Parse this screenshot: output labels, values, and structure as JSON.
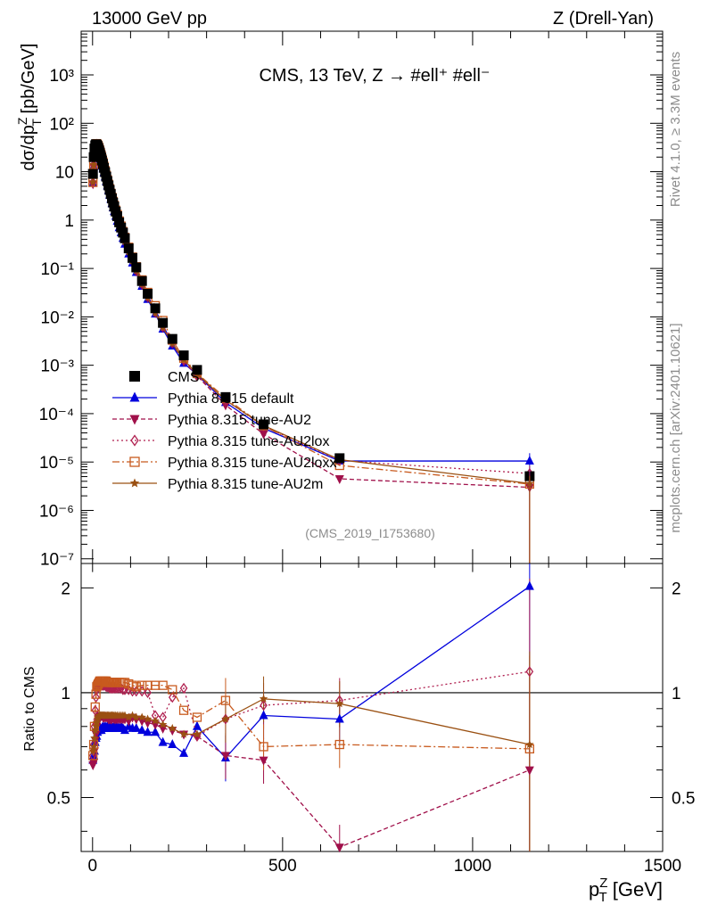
{
  "header": {
    "left": "13000 GeV pp",
    "right": "Z (Drell-Yan)"
  },
  "side_labels": {
    "rivet": "Rivet 4.1.0, ≥ 3.3M events",
    "mcplots": "mcplots.cern.ch [arXiv:2401.10621]"
  },
  "chart_data": [
    {
      "type": "scatter",
      "title": "CMS, 13 TeV, Z →  #ell⁺ #ell⁻",
      "analysis_label": "(CMS_2019_I1753680)",
      "xlabel": "p_T^Z [GeV]",
      "ylabel": "dσ/dp_T^Z [pb/GeV]",
      "ylabel_text": {
        "main": "dσ/dp",
        "sup": "Z",
        "sub": "T",
        "unit": " [pb/GeV]"
      },
      "yscale": "log",
      "xlim": [
        -30,
        1500
      ],
      "ylim": [
        8e-08,
        8000
      ],
      "y_ticks": [
        {
          "v": 1000,
          "label": "10³"
        },
        {
          "v": 100,
          "label": "10²"
        },
        {
          "v": 10,
          "label": "10"
        },
        {
          "v": 1,
          "label": "1"
        },
        {
          "v": 0.1,
          "label": "10⁻¹"
        },
        {
          "v": 0.01,
          "label": "10⁻²"
        },
        {
          "v": 0.001,
          "label": "10⁻³"
        },
        {
          "v": 0.0001,
          "label": "10⁻⁴"
        },
        {
          "v": 1e-05,
          "label": "10⁻⁵"
        },
        {
          "v": 1e-06,
          "label": "10⁻⁶"
        },
        {
          "v": 1e-07,
          "label": "10⁻⁷"
        }
      ],
      "x": [
        1,
        3,
        5,
        7,
        9,
        11,
        13,
        15,
        17,
        19,
        21,
        23,
        25,
        27.5,
        30,
        33,
        36,
        39,
        42,
        45,
        48,
        51,
        54,
        57,
        61,
        65,
        70,
        75,
        80,
        85,
        95,
        105,
        115,
        130,
        145,
        165,
        185,
        210,
        240,
        275,
        350,
        450,
        650,
        1150
      ],
      "series": [
        {
          "name": "CMS",
          "color": "#000000",
          "marker": "square",
          "line": "none",
          "values": [
            9,
            20,
            30,
            35,
            37,
            36,
            34,
            31,
            28,
            25,
            22,
            19.5,
            17,
            14.5,
            12,
            9.8,
            7.9,
            6.4,
            5.2,
            4.2,
            3.45,
            2.8,
            2.3,
            1.9,
            1.5,
            1.2,
            0.9,
            0.7,
            0.55,
            0.42,
            0.26,
            0.165,
            0.105,
            0.055,
            0.03,
            0.015,
            0.0075,
            0.0035,
            0.0016,
            0.0008,
            0.00022,
            6e-05,
            1.2e-05,
            5.1e-06
          ]
        },
        {
          "name": "Pythia 8.315 default",
          "color": "#0000dd",
          "marker": "triangle-up",
          "line": "solid",
          "values": [
            5.8,
            13,
            20,
            25,
            26,
            26,
            25,
            23,
            21,
            19,
            17,
            15,
            13,
            11.5,
            9.5,
            7.8,
            6.3,
            5.1,
            4.1,
            3.3,
            2.7,
            2.2,
            1.8,
            1.5,
            1.2,
            0.95,
            0.7,
            0.55,
            0.42,
            0.32,
            0.2,
            0.13,
            0.083,
            0.043,
            0.023,
            0.0115,
            0.0056,
            0.0025,
            0.0011,
            0.00064,
            0.00017,
            5e-05,
            1.05e-05,
            1.05e-05
          ]
        },
        {
          "name": "Pythia 8.315 tune-AU2",
          "color": "#a0104a",
          "marker": "triangle-down",
          "line": "dashed",
          "values": [
            5.6,
            12.5,
            20,
            25,
            27,
            28,
            27,
            26,
            24,
            21.5,
            19,
            16.8,
            14.5,
            12.3,
            10.2,
            8.3,
            6.7,
            5.4,
            4.4,
            3.55,
            2.9,
            2.35,
            1.95,
            1.6,
            1.27,
            1.01,
            0.76,
            0.59,
            0.46,
            0.35,
            0.215,
            0.14,
            0.088,
            0.046,
            0.025,
            0.0121,
            0.006,
            0.0028,
            0.0012,
            0.0006,
            0.00015,
            3.8e-05,
            4.5e-06,
            3e-06
          ]
        },
        {
          "name": "Pythia 8.315 tune-AU2lox",
          "color": "#b02050",
          "marker": "diamond-open",
          "line": "dotted",
          "values": [
            6,
            14,
            24,
            31,
            36,
            37,
            35,
            33,
            30,
            27,
            24,
            21,
            18,
            15.5,
            12.8,
            10.3,
            8.2,
            6.6,
            5.3,
            4.3,
            3.5,
            2.85,
            2.35,
            1.95,
            1.55,
            1.25,
            0.93,
            0.72,
            0.56,
            0.43,
            0.265,
            0.167,
            0.106,
            0.056,
            0.03,
            0.0128,
            0.0063,
            0.0034,
            0.0013,
            0.0006,
            0.00019,
            5.5e-05,
            1.08e-05,
            5.8e-06
          ]
        },
        {
          "name": "Pythia 8.315 tune-AU2loxx",
          "color": "#c85a1e",
          "marker": "square-open",
          "line": "dashdot",
          "values": [
            6,
            14,
            24,
            32,
            37,
            38,
            36,
            34,
            31,
            27.5,
            24.3,
            21.3,
            18.4,
            15.8,
            13,
            10.5,
            8.4,
            6.8,
            5.5,
            4.45,
            3.6,
            2.95,
            2.43,
            2.02,
            1.6,
            1.3,
            0.96,
            0.75,
            0.58,
            0.44,
            0.275,
            0.172,
            0.109,
            0.058,
            0.032,
            0.017,
            0.0084,
            0.0033,
            0.0014,
            0.00068,
            0.00021,
            5.6e-05,
            8.5e-06,
            3.5e-06
          ]
        },
        {
          "name": "Pythia 8.315 tune-AU2m",
          "color": "#9a5012",
          "marker": "star",
          "line": "solid",
          "values": [
            6.1,
            14,
            22,
            27,
            29,
            29.5,
            28.5,
            26.5,
            24,
            21.5,
            19,
            16.8,
            14.6,
            12.4,
            10.3,
            8.4,
            6.8,
            5.5,
            4.5,
            3.6,
            2.95,
            2.4,
            2,
            1.65,
            1.3,
            1.04,
            0.78,
            0.6,
            0.47,
            0.36,
            0.22,
            0.142,
            0.09,
            0.047,
            0.025,
            0.012,
            0.006,
            0.0028,
            0.0013,
            0.00066,
            0.00019,
            5.7e-05,
            1.12e-05,
            3.6e-06
          ]
        }
      ]
    },
    {
      "type": "scatter",
      "xlabel": "p_T^Z [GeV]",
      "xlabel_text": {
        "main": "p",
        "sup": "Z",
        "sub": "T",
        "unit": " [GeV]"
      },
      "ylabel": "Ratio to CMS",
      "yscale": "log",
      "xlim": [
        -30,
        1500
      ],
      "ylim": [
        0.35,
        2.35
      ],
      "x_ticks": [
        {
          "v": 0,
          "label": "0"
        },
        {
          "v": 500,
          "label": "500"
        },
        {
          "v": 1000,
          "label": "1000"
        },
        {
          "v": 1500,
          "label": "1500"
        }
      ],
      "y_ticks": [
        {
          "v": 0.5,
          "label": "0.5"
        },
        {
          "v": 1,
          "label": "1"
        },
        {
          "v": 2,
          "label": "2"
        }
      ],
      "reference_line": 1,
      "x": [
        1,
        3,
        5,
        7,
        9,
        11,
        13,
        15,
        17,
        19,
        21,
        23,
        25,
        27.5,
        30,
        33,
        36,
        39,
        42,
        45,
        48,
        51,
        54,
        57,
        61,
        65,
        70,
        75,
        80,
        85,
        95,
        105,
        115,
        130,
        145,
        165,
        185,
        210,
        240,
        275,
        350,
        450,
        650,
        1150
      ],
      "series": [
        {
          "name": "Pythia 8.315 default",
          "color": "#0000dd",
          "marker": "triangle-up",
          "line": "solid",
          "values": [
            0.64,
            0.66,
            0.68,
            0.72,
            0.74,
            0.75,
            0.77,
            0.78,
            0.78,
            0.79,
            0.79,
            0.78,
            0.79,
            0.8,
            0.79,
            0.8,
            0.79,
            0.8,
            0.79,
            0.8,
            0.79,
            0.8,
            0.79,
            0.8,
            0.79,
            0.8,
            0.79,
            0.8,
            0.79,
            0.78,
            0.8,
            0.79,
            0.79,
            0.78,
            0.77,
            0.77,
            0.72,
            0.71,
            0.67,
            0.8,
            0.65,
            0.86,
            0.84,
            2.02
          ]
        },
        {
          "name": "Pythia 8.315 tune-AU2",
          "color": "#a0104a",
          "marker": "triangle-down",
          "line": "dashed",
          "values": [
            0.62,
            0.63,
            0.68,
            0.73,
            0.76,
            0.8,
            0.82,
            0.84,
            0.85,
            0.86,
            0.86,
            0.86,
            0.86,
            0.85,
            0.85,
            0.85,
            0.85,
            0.85,
            0.84,
            0.84,
            0.84,
            0.84,
            0.85,
            0.84,
            0.84,
            0.84,
            0.84,
            0.84,
            0.84,
            0.84,
            0.83,
            0.85,
            0.84,
            0.83,
            0.82,
            0.81,
            0.79,
            0.78,
            0.76,
            0.75,
            0.66,
            0.64,
            0.36,
            0.6
          ]
        },
        {
          "name": "Pythia 8.315 tune-AU2lox",
          "color": "#b02050",
          "marker": "diamond-open",
          "line": "dotted",
          "values": [
            0.66,
            0.71,
            0.8,
            0.89,
            0.97,
            1.02,
            1.04,
            1.05,
            1.06,
            1.06,
            1.06,
            1.06,
            1.05,
            1.05,
            1.05,
            1.05,
            1.04,
            1.04,
            1.04,
            1.03,
            1.03,
            1.03,
            1.03,
            1.03,
            1.03,
            1.03,
            1.03,
            1.03,
            1.02,
            1.02,
            1.02,
            1.01,
            1.01,
            1.01,
            1,
            0.86,
            0.85,
            0.97,
            1.03,
            0.75,
            0.84,
            0.92,
            0.95,
            1.15
          ]
        },
        {
          "name": "Pythia 8.315 tune-AU2loxx",
          "color": "#c85a1e",
          "marker": "square-open",
          "line": "dashdot",
          "values": [
            0.66,
            0.71,
            0.8,
            0.91,
            0.99,
            1.04,
            1.05,
            1.06,
            1.07,
            1.08,
            1.08,
            1.08,
            1.08,
            1.08,
            1.08,
            1.08,
            1.08,
            1.07,
            1.07,
            1.07,
            1.07,
            1.07,
            1.07,
            1.07,
            1.07,
            1.07,
            1.07,
            1.07,
            1.07,
            1.07,
            1.06,
            1.05,
            1.04,
            1.05,
            1.05,
            1.05,
            1.05,
            1.02,
            0.89,
            0.85,
            0.95,
            0.7,
            0.71,
            0.69
          ]
        },
        {
          "name": "Pythia 8.315 tune-AU2m",
          "color": "#9a5012",
          "marker": "star",
          "line": "solid",
          "values": [
            0.68,
            0.7,
            0.74,
            0.78,
            0.8,
            0.82,
            0.84,
            0.85,
            0.86,
            0.86,
            0.86,
            0.86,
            0.86,
            0.86,
            0.86,
            0.86,
            0.86,
            0.86,
            0.86,
            0.86,
            0.86,
            0.86,
            0.86,
            0.86,
            0.86,
            0.86,
            0.86,
            0.86,
            0.86,
            0.86,
            0.85,
            0.86,
            0.85,
            0.85,
            0.84,
            0.83,
            0.81,
            0.79,
            0.76,
            0.76,
            0.84,
            0.96,
            0.93,
            0.71
          ]
        }
      ]
    }
  ]
}
